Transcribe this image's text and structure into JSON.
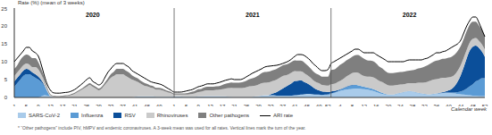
{
  "chart_data": {
    "type": "area",
    "stacked": true,
    "grid": false,
    "y_axis_label": "Rate (%) (mean of 3 weeks)",
    "x_axis_label": "Calendar week",
    "note": "* “Other pathogens” include PIV, hMPV and endemic coronaviruses. A 3-week mean was used for all rates. Vertical lines mark the turn of the year.",
    "years": [
      {
        "label": "2020",
        "weeks": 53
      },
      {
        "label": "2021",
        "weeks": 52
      },
      {
        "label": "2022",
        "weeks": 52
      }
    ],
    "ylim": [
      0,
      25
    ],
    "yticks": [
      0,
      5,
      10,
      15,
      20,
      25
    ],
    "categories": [
      "1",
      null,
      null,
      null,
      "5",
      null,
      null,
      null,
      "9",
      null,
      null,
      null,
      "13",
      null,
      null,
      null,
      "17",
      null,
      null,
      null,
      "21",
      null,
      null,
      null,
      "25",
      null,
      null,
      null,
      "29",
      null,
      null,
      null,
      "33",
      null,
      null,
      null,
      "37",
      null,
      null,
      null,
      "41",
      null,
      null,
      null,
      "45",
      null,
      null,
      null,
      "49",
      null,
      null,
      null,
      null,
      "1",
      null,
      null,
      null,
      "5",
      null,
      null,
      null,
      "9",
      null,
      null,
      null,
      "13",
      null,
      null,
      null,
      "17",
      null,
      null,
      null,
      "21",
      null,
      null,
      null,
      "25",
      null,
      null,
      null,
      "29",
      null,
      null,
      null,
      "33",
      null,
      null,
      null,
      "37",
      null,
      null,
      null,
      "41",
      null,
      null,
      null,
      "45",
      null,
      null,
      null,
      "49",
      null,
      null,
      "52",
      null,
      null,
      null,
      "4",
      null,
      null,
      null,
      "8",
      null,
      null,
      null,
      "12",
      null,
      null,
      null,
      "16",
      null,
      null,
      null,
      "20",
      null,
      null,
      null,
      "24",
      null,
      null,
      null,
      "28",
      null,
      null,
      null,
      "32",
      null,
      null,
      null,
      "36",
      null,
      null,
      null,
      "40",
      null,
      null,
      null,
      "44",
      null,
      null,
      null,
      "48",
      null,
      null,
      null,
      "52"
    ],
    "series": [
      {
        "name": "SARS-CoV-2",
        "type": "area",
        "color": "#a9cbea",
        "values": [
          0,
          0,
          0,
          0,
          0,
          0,
          0,
          0,
          0,
          0.3,
          0.6,
          0.5,
          0.3,
          0.1,
          0,
          0,
          0,
          0,
          0,
          0,
          0,
          0,
          0,
          0,
          0,
          0,
          0,
          0,
          0,
          0,
          0,
          0,
          0,
          0,
          0,
          0,
          0,
          0,
          0,
          0,
          0.2,
          0.3,
          0.3,
          0.3,
          0.3,
          0.3,
          0.3,
          0.2,
          0.2,
          0.2,
          0.2,
          0.2,
          0.2,
          0.3,
          0.3,
          0.3,
          0.2,
          0.2,
          0.2,
          0.2,
          0.2,
          0.3,
          0.3,
          0.4,
          0.4,
          0.4,
          0.4,
          0.4,
          0.4,
          0.3,
          0.3,
          0.2,
          0.2,
          0.1,
          0.1,
          0.1,
          0.1,
          0.1,
          0.1,
          0.2,
          0.3,
          0.4,
          0.5,
          0.6,
          0.6,
          0.6,
          0.6,
          0.5,
          0.5,
          0.5,
          0.5,
          0.5,
          0.5,
          0.6,
          0.7,
          0.8,
          0.9,
          1,
          1,
          0.9,
          0.8,
          0.7,
          0.6,
          0.6,
          0.6,
          1,
          1.2,
          1.5,
          1.8,
          2,
          2.2,
          2.3,
          2.4,
          2.5,
          2.5,
          2.4,
          2.3,
          2.2,
          2,
          1.8,
          1.5,
          1.2,
          1,
          0.8,
          0.7,
          0.7,
          0.8,
          1,
          1.2,
          1.4,
          1.6,
          1.7,
          1.6,
          1.4,
          1.2,
          1,
          0.9,
          0.8,
          0.8,
          0.9,
          1,
          1.1,
          1.2,
          1.3,
          1.3,
          1.2,
          1.1,
          1,
          0.9,
          0.8,
          0.7,
          0.6,
          0.5,
          0.5,
          0.4,
          0.4,
          0.4
        ]
      },
      {
        "name": "Influenza",
        "type": "area",
        "color": "#5b9bd5",
        "values": [
          3,
          4,
          5,
          6,
          6.5,
          6.5,
          6,
          5.5,
          5,
          4,
          2.5,
          1,
          0,
          0,
          0,
          0,
          0,
          0,
          0,
          0,
          0,
          0,
          0,
          0,
          0,
          0,
          0,
          0,
          0,
          0,
          0,
          0,
          0,
          0,
          0,
          0,
          0,
          0,
          0,
          0,
          0,
          0,
          0,
          0,
          0,
          0,
          0,
          0,
          0,
          0,
          0,
          0,
          0,
          0,
          0,
          0,
          0,
          0,
          0,
          0,
          0,
          0,
          0,
          0,
          0,
          0,
          0,
          0,
          0,
          0,
          0,
          0,
          0,
          0,
          0,
          0,
          0,
          0,
          0,
          0,
          0,
          0,
          0,
          0,
          0,
          0,
          0,
          0,
          0,
          0,
          0,
          0,
          0,
          0,
          0,
          0,
          0,
          0,
          0,
          0,
          0,
          0.1,
          0.1,
          0.2,
          0.3,
          0.2,
          0.2,
          0.2,
          0.3,
          0.5,
          0.7,
          0.9,
          1,
          1,
          0.9,
          0.8,
          0.7,
          0.6,
          0.6,
          0.5,
          0.5,
          0.4,
          0.3,
          0.2,
          0.1,
          0.1,
          0.1,
          0.1,
          0.1,
          0.1,
          0.1,
          0.1,
          0.1,
          0.1,
          0.1,
          0.1,
          0.1,
          0.1,
          0.1,
          0.1,
          0.1,
          0.1,
          0.1,
          0.1,
          0.1,
          0.2,
          0.3,
          0.5,
          0.8,
          1.2,
          1.8,
          2.5,
          3.2,
          4,
          4.5,
          5,
          5
        ]
      },
      {
        "name": "RSV",
        "type": "area",
        "color": "#0b4f9a",
        "values": [
          1.5,
          1.5,
          1.5,
          1.5,
          1.5,
          1.2,
          1,
          1,
          0.8,
          0.5,
          0.3,
          0.1,
          0,
          0,
          0,
          0,
          0,
          0,
          0,
          0,
          0,
          0,
          0,
          0,
          0,
          0,
          0,
          0,
          0,
          0,
          0,
          0,
          0,
          0,
          0,
          0,
          0,
          0,
          0,
          0,
          0,
          0,
          0,
          0,
          0,
          0,
          0,
          0,
          0,
          0,
          0,
          0,
          0,
          0,
          0,
          0,
          0,
          0,
          0,
          0,
          0,
          0,
          0,
          0,
          0,
          0,
          0,
          0,
          0,
          0,
          0,
          0,
          0,
          0,
          0,
          0,
          0,
          0,
          0,
          0,
          0,
          0,
          0,
          0,
          0,
          0.3,
          0.6,
          1,
          1.5,
          2,
          2.5,
          3,
          3.5,
          4,
          4,
          4,
          3.5,
          3,
          2.5,
          2,
          1.5,
          1.2,
          1,
          0.8,
          0.6,
          0.5,
          0.4,
          0.3,
          0.2,
          0.1,
          0.1,
          0.1,
          0.1,
          0,
          0,
          0,
          0,
          0,
          0,
          0,
          0,
          0,
          0,
          0,
          0,
          0,
          0,
          0,
          0,
          0,
          0,
          0,
          0,
          0,
          0,
          0,
          0,
          0,
          0,
          0,
          0,
          0.1,
          0.2,
          0.3,
          0.6,
          1,
          1.8,
          3,
          4.5,
          6.5,
          8.5,
          10,
          10.5,
          10,
          9,
          7.5,
          6
        ]
      },
      {
        "name": "Rhinoviruses",
        "type": "area",
        "color": "#cacaca",
        "values": [
          1.5,
          1.5,
          1.5,
          1.5,
          1.5,
          1.5,
          1.5,
          2,
          2,
          1.5,
          1,
          0.5,
          0.3,
          0.2,
          0.2,
          0.2,
          0.3,
          0.4,
          0.5,
          0.7,
          1,
          1.5,
          2,
          2.5,
          3,
          3.5,
          3,
          2.5,
          2,
          2.5,
          3.5,
          4.5,
          5.5,
          6,
          6.5,
          6.5,
          6.5,
          6,
          5.5,
          5,
          4.5,
          4,
          3.5,
          3,
          2.8,
          2.5,
          2.3,
          2,
          2,
          1.8,
          1.5,
          1.2,
          1,
          0.5,
          0.5,
          0.5,
          0.6,
          0.6,
          0.7,
          0.8,
          1,
          1.2,
          1.3,
          1.5,
          1.6,
          1.6,
          1.6,
          1.7,
          1.8,
          2,
          2.2,
          2.4,
          2.5,
          2.5,
          2.5,
          2.5,
          2.6,
          2.8,
          3,
          3,
          3,
          3.2,
          3.5,
          3.5,
          3.6,
          3.5,
          3.5,
          3.5,
          3.5,
          3.5,
          3.2,
          3,
          3,
          2.8,
          2.6,
          2.5,
          2.5,
          2.3,
          2.2,
          2,
          2,
          2,
          1.8,
          1.8,
          1.8,
          2,
          2,
          2.2,
          2.3,
          2.5,
          2.8,
          3,
          3.3,
          3.5,
          3.5,
          3.2,
          3,
          3,
          3.2,
          3.3,
          3.2,
          3,
          3,
          2.8,
          2.6,
          2.5,
          2.5,
          2.4,
          2.3,
          2.2,
          2.2,
          2.2,
          2.3,
          2.5,
          2.8,
          3,
          3.2,
          3.5,
          3.8,
          4,
          4,
          4,
          4,
          3.8,
          3.6,
          3.4,
          3.2,
          3,
          2.8,
          2.6,
          2.4,
          2.3,
          2.2,
          2.1,
          2,
          2,
          2
        ]
      },
      {
        "name": "Other pathogens",
        "type": "area",
        "color": "#7f7f7f",
        "values": [
          2,
          2,
          2.5,
          2.5,
          2.5,
          2.5,
          2.5,
          2.5,
          2,
          1.5,
          1,
          0.5,
          0.3,
          0.2,
          0.2,
          0.2,
          0.2,
          0.2,
          0.2,
          0.3,
          0.3,
          0.3,
          0.3,
          0.4,
          0.5,
          0.5,
          0.5,
          0.5,
          0.5,
          0.5,
          0.6,
          0.8,
          1,
          1.2,
          1.5,
          1.5,
          1.5,
          1.5,
          1.5,
          1.2,
          1,
          1,
          0.8,
          0.8,
          0.7,
          0.6,
          0.6,
          0.5,
          0.5,
          0.5,
          0.4,
          0.4,
          0.3,
          0.3,
          0.3,
          0.3,
          0.3,
          0.4,
          0.5,
          0.6,
          0.7,
          0.8,
          0.8,
          0.9,
          1,
          1,
          1,
          1,
          1,
          1.2,
          1.3,
          1.4,
          1.5,
          1.5,
          1.5,
          1.6,
          1.7,
          1.8,
          2,
          2.2,
          2.4,
          2.6,
          2.8,
          3,
          3,
          3,
          3,
          3,
          3,
          3,
          3,
          3,
          3,
          3,
          3,
          3,
          3,
          2.8,
          2.6,
          2.5,
          2.4,
          2.3,
          2.3,
          2.4,
          2.5,
          4,
          4,
          4.2,
          4.5,
          4.5,
          4.5,
          4.5,
          4.6,
          4.8,
          5,
          5,
          4.8,
          4.6,
          4.5,
          4.5,
          4.3,
          4,
          3.8,
          3.6,
          3.5,
          3.5,
          3.5,
          3.5,
          3.5,
          3.5,
          3.5,
          3.5,
          3.6,
          3.8,
          4,
          4.2,
          4.4,
          4.6,
          4.8,
          5,
          5.2,
          5.2,
          5.3,
          5.4,
          5.5,
          5.6,
          5.6,
          5.5,
          5.4,
          5.3,
          5.2,
          5,
          4.8,
          4.6,
          4.3,
          4,
          3.8
        ]
      },
      {
        "name": "ARI rate",
        "type": "line",
        "color": "#000000",
        "values": [
          10,
          11,
          12,
          13,
          14,
          14,
          13,
          12.5,
          11.5,
          9,
          6,
          3.5,
          2,
          1.3,
          1.2,
          1.2,
          1.3,
          1.4,
          1.5,
          1.8,
          2.2,
          2.8,
          3.5,
          4.2,
          5,
          5.5,
          4.5,
          4,
          3.5,
          4,
          5.5,
          7,
          8,
          9,
          9.5,
          9.5,
          9.5,
          9,
          8.5,
          7.5,
          7,
          6.5,
          6,
          5.5,
          5,
          4.5,
          4.2,
          4,
          3.8,
          3.5,
          3,
          2.5,
          2,
          1.5,
          1.5,
          1.5,
          1.6,
          1.8,
          2,
          2.2,
          2.6,
          3,
          3.2,
          3.5,
          3.8,
          3.8,
          3.8,
          4,
          4.2,
          4.5,
          4.8,
          5,
          5.2,
          5,
          5,
          5,
          5.3,
          5.8,
          6.3,
          6.8,
          7.2,
          7.6,
          8,
          8.5,
          8.7,
          8.8,
          8.9,
          9,
          9.2,
          9.5,
          9.8,
          10.2,
          10.8,
          11.5,
          12,
          12,
          11.8,
          11.2,
          10.5,
          9.5,
          8.8,
          8,
          7.5,
          7.5,
          7.8,
          9.5,
          10,
          10.5,
          11,
          11.5,
          12,
          12.5,
          13,
          13.5,
          13.5,
          13,
          12.5,
          12.5,
          12.5,
          12.5,
          12,
          11.5,
          11,
          10.5,
          10,
          10,
          10,
          10,
          10,
          10,
          10.3,
          10.5,
          10.5,
          10.5,
          10.5,
          10.5,
          10.8,
          11,
          11.5,
          12,
          12.5,
          12.5,
          12.8,
          13,
          13.5,
          14,
          14.5,
          15,
          16,
          18,
          20,
          21.5,
          22.5,
          22.5,
          21,
          19,
          17
        ]
      }
    ]
  }
}
